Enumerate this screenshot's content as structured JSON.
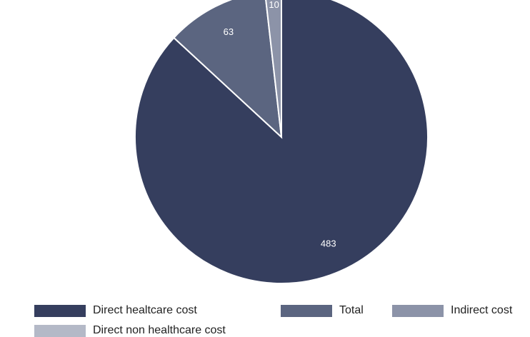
{
  "chart_data": {
    "type": "pie",
    "title": "",
    "slices": [
      {
        "label": "Direct healtcare cost",
        "value": 483,
        "display": "483",
        "color": "#353e5e"
      },
      {
        "label": "Total",
        "value": 63,
        "display": "63",
        "color": "#5b6580"
      },
      {
        "label": "Indirect cost",
        "value": 10,
        "display": "10",
        "color": "#8c93a8"
      },
      {
        "label": "Direct non healthcare cost",
        "value": 0,
        "display": "",
        "color": "#b4b9c7"
      }
    ],
    "legend_position": "bottom"
  }
}
